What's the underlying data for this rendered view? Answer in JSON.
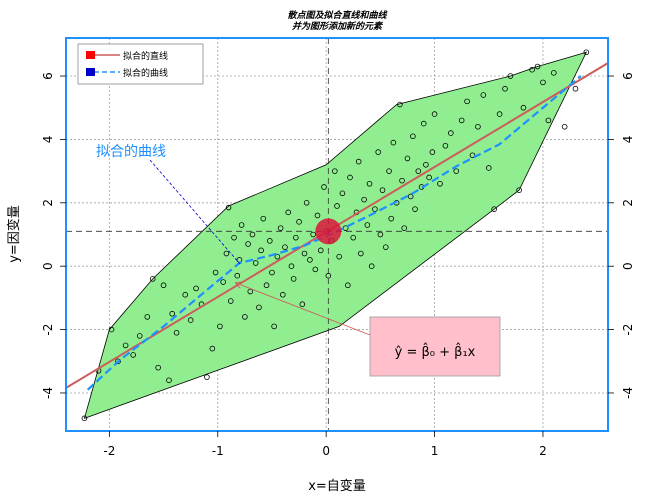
{
  "colors": {
    "hull_fill": "#90ee90",
    "frame": "#1e90ff",
    "fit_line": "#cd5c5c",
    "fit_curve": "#1e90ff",
    "center_point": "#dc143c",
    "formula_box": "#ffc0cb",
    "label_text": "#1e90ff",
    "grid": "#a0a0a0"
  },
  "chart_data": {
    "type": "scatter",
    "title_line1": "散点图及拟合直线和曲线",
    "title_line2": "并为图形添加新的元素",
    "xlabel": "x=自变量",
    "ylabel": "y=因变量",
    "xlim": [
      -2.4,
      2.6
    ],
    "ylim": [
      -5.2,
      7.2
    ],
    "x_ticks": [
      -2,
      -1,
      0,
      1,
      2
    ],
    "y_ticks": [
      -4,
      -2,
      0,
      2,
      4,
      6
    ],
    "grid": true,
    "legend": {
      "placement": "top-left",
      "entries": [
        {
          "label": "拟合的直线",
          "color": "#cd5c5c",
          "marker": "#ff0000",
          "style": "solid"
        },
        {
          "label": "拟合的曲线",
          "color": "#1e90ff",
          "marker": "#0000cd",
          "style": "dashed"
        }
      ]
    },
    "annotation_curve": "拟合的曲线",
    "formula": "ŷ = β̂₀ + β̂₁x",
    "center": {
      "x": 0.02,
      "y": 1.1
    },
    "fit_line": {
      "intercept": 1.08,
      "slope": 2.05
    },
    "fit_curve": [
      [
        -2.2,
        -3.9
      ],
      [
        -1.9,
        -2.95
      ],
      [
        -1.5,
        -1.9
      ],
      [
        -1.1,
        -0.75
      ],
      [
        -0.8,
        0.1
      ],
      [
        -0.5,
        0.35
      ],
      [
        -0.2,
        0.65
      ],
      [
        0.1,
        1.1
      ],
      [
        0.4,
        1.6
      ],
      [
        0.8,
        2.3
      ],
      [
        1.2,
        3.15
      ],
      [
        1.6,
        3.85
      ],
      [
        2.0,
        5.0
      ],
      [
        2.35,
        6.0
      ]
    ],
    "hull": [
      [
        -2.23,
        -4.8
      ],
      [
        0.12,
        -1.9
      ],
      [
        1.55,
        1.8
      ],
      [
        1.78,
        2.4
      ],
      [
        2.4,
        6.75
      ],
      [
        1.95,
        6.3
      ],
      [
        1.7,
        6.0
      ],
      [
        0.65,
        5.1
      ],
      [
        0.0,
        3.2
      ],
      [
        -0.9,
        1.9
      ],
      [
        -1.6,
        -0.4
      ],
      [
        -2.0,
        -2.0
      ]
    ],
    "points": [
      [
        -2.23,
        -4.8
      ],
      [
        -2.1,
        -3.3
      ],
      [
        -1.98,
        -2.0
      ],
      [
        -1.92,
        -3.0
      ],
      [
        -1.85,
        -2.5
      ],
      [
        -1.78,
        -2.8
      ],
      [
        -1.72,
        -2.2
      ],
      [
        -1.65,
        -1.6
      ],
      [
        -1.6,
        -0.4
      ],
      [
        -1.55,
        -3.2
      ],
      [
        -1.5,
        -0.6
      ],
      [
        -1.45,
        -3.6
      ],
      [
        -1.42,
        -1.5
      ],
      [
        -1.38,
        -2.1
      ],
      [
        -1.3,
        -0.9
      ],
      [
        -1.25,
        -1.7
      ],
      [
        -1.2,
        -0.7
      ],
      [
        -1.15,
        -1.2
      ],
      [
        -1.1,
        -3.5
      ],
      [
        -1.05,
        -2.6
      ],
      [
        -1.02,
        -0.2
      ],
      [
        -0.98,
        -1.9
      ],
      [
        -0.95,
        -0.5
      ],
      [
        -0.92,
        0.4
      ],
      [
        -0.9,
        1.85
      ],
      [
        -0.88,
        -1.1
      ],
      [
        -0.85,
        0.9
      ],
      [
        -0.82,
        -0.3
      ],
      [
        -0.8,
        0.2
      ],
      [
        -0.78,
        1.3
      ],
      [
        -0.75,
        -1.6
      ],
      [
        -0.72,
        0.7
      ],
      [
        -0.7,
        -0.8
      ],
      [
        -0.68,
        1.0
      ],
      [
        -0.65,
        0.1
      ],
      [
        -0.62,
        -1.3
      ],
      [
        -0.6,
        0.5
      ],
      [
        -0.58,
        1.5
      ],
      [
        -0.55,
        -0.6
      ],
      [
        -0.52,
        0.8
      ],
      [
        -0.5,
        -0.2
      ],
      [
        -0.48,
        -1.9
      ],
      [
        -0.45,
        0.3
      ],
      [
        -0.42,
        1.2
      ],
      [
        -0.4,
        -0.9
      ],
      [
        -0.38,
        0.6
      ],
      [
        -0.35,
        1.7
      ],
      [
        -0.32,
        0.0
      ],
      [
        -0.3,
        -0.4
      ],
      [
        -0.28,
        0.9
      ],
      [
        -0.25,
        1.4
      ],
      [
        -0.22,
        -1.2
      ],
      [
        -0.2,
        0.4
      ],
      [
        -0.18,
        2.0
      ],
      [
        -0.15,
        0.2
      ],
      [
        -0.12,
        1.0
      ],
      [
        -0.1,
        -0.1
      ],
      [
        -0.08,
        1.6
      ],
      [
        -0.05,
        0.5
      ],
      [
        -0.02,
        2.5
      ],
      [
        0.0,
        1.1
      ],
      [
        0.02,
        -0.3
      ],
      [
        0.05,
        0.8
      ],
      [
        0.08,
        3.0
      ],
      [
        0.1,
        1.9
      ],
      [
        0.12,
        0.3
      ],
      [
        0.15,
        2.3
      ],
      [
        0.18,
        1.2
      ],
      [
        0.2,
        -0.6
      ],
      [
        0.22,
        2.8
      ],
      [
        0.25,
        0.9
      ],
      [
        0.28,
        1.7
      ],
      [
        0.3,
        3.3
      ],
      [
        0.32,
        0.4
      ],
      [
        0.35,
        2.1
      ],
      [
        0.38,
        1.3
      ],
      [
        0.4,
        2.6
      ],
      [
        0.42,
        0.0
      ],
      [
        0.45,
        1.8
      ],
      [
        0.48,
        3.6
      ],
      [
        0.5,
        1.0
      ],
      [
        0.52,
        2.4
      ],
      [
        0.55,
        0.6
      ],
      [
        0.58,
        3.0
      ],
      [
        0.6,
        1.5
      ],
      [
        0.62,
        3.9
      ],
      [
        0.65,
        2.0
      ],
      [
        0.68,
        5.1
      ],
      [
        0.7,
        2.7
      ],
      [
        0.72,
        1.2
      ],
      [
        0.75,
        3.4
      ],
      [
        0.78,
        2.2
      ],
      [
        0.8,
        4.1
      ],
      [
        0.82,
        1.8
      ],
      [
        0.85,
        3.0
      ],
      [
        0.88,
        2.5
      ],
      [
        0.9,
        4.5
      ],
      [
        0.92,
        3.2
      ],
      [
        0.95,
        2.8
      ],
      [
        0.98,
        3.6
      ],
      [
        1.0,
        4.8
      ],
      [
        1.05,
        2.6
      ],
      [
        1.1,
        3.8
      ],
      [
        1.15,
        4.2
      ],
      [
        1.2,
        3.0
      ],
      [
        1.25,
        4.6
      ],
      [
        1.3,
        5.2
      ],
      [
        1.35,
        3.5
      ],
      [
        1.4,
        4.4
      ],
      [
        1.45,
        5.4
      ],
      [
        1.5,
        3.1
      ],
      [
        1.55,
        1.8
      ],
      [
        1.6,
        4.8
      ],
      [
        1.65,
        5.6
      ],
      [
        1.7,
        6.0
      ],
      [
        1.78,
        2.4
      ],
      [
        1.82,
        5.0
      ],
      [
        1.9,
        6.2
      ],
      [
        1.95,
        6.3
      ],
      [
        2.0,
        5.8
      ],
      [
        2.05,
        4.6
      ],
      [
        2.1,
        6.1
      ],
      [
        2.2,
        4.4
      ],
      [
        2.3,
        5.6
      ],
      [
        2.4,
        6.75
      ]
    ]
  }
}
